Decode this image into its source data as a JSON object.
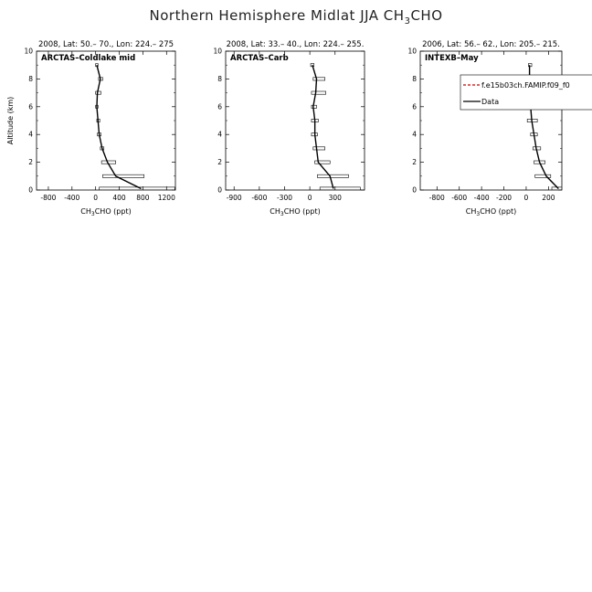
{
  "title_main": "Northern Hemisphere Midlat JJA CH",
  "title_sub": "3",
  "title_tail": "CHO",
  "colors": {
    "axis": "#000000",
    "data_line": "#000000",
    "model_line": "#cc0000"
  },
  "chart_data": [
    {
      "type": "line",
      "header": "2008, Lat:  50.–  70., Lon: 224.– 275",
      "campaign": "ARCTAS–Coldlake mid",
      "ylabel": "Altitude (km)",
      "xlabel": "CH3CHO (ppt)",
      "xlim": [
        -1000,
        1350
      ],
      "ylim": [
        0,
        10
      ],
      "xticks": [
        "-800",
        "-400",
        "0",
        "400",
        "800",
        "1200"
      ],
      "xtick_values": [
        -800,
        -400,
        0,
        400,
        800,
        1200
      ],
      "yticks": [
        "0",
        "2",
        "4",
        "6",
        "8",
        "10"
      ],
      "ytick_values": [
        0,
        2,
        4,
        6,
        8,
        10
      ],
      "series": [
        {
          "name": "Data",
          "altitude": [
            0.1,
            1,
            2,
            3,
            4,
            5,
            6,
            7,
            8,
            9
          ],
          "value": [
            770,
            340,
            200,
            110,
            60,
            40,
            20,
            30,
            80,
            20
          ],
          "xmin": [
            60,
            120,
            100,
            80,
            30,
            20,
            0,
            0,
            50,
            0
          ],
          "xmax": [
            1340,
            820,
            340,
            140,
            90,
            70,
            40,
            90,
            120,
            40
          ]
        }
      ],
      "legend": null
    },
    {
      "type": "line",
      "header": "2008, Lat:  33.–  40., Lon: 224.– 255.",
      "campaign": "ARCTAS–Carb",
      "ylabel": "",
      "xlabel": "CH3CHO (ppt)",
      "xlim": [
        -1000,
        650
      ],
      "ylim": [
        0,
        10
      ],
      "xticks": [
        "-900",
        "-600",
        "-300",
        "0",
        "300"
      ],
      "xtick_values": [
        -900,
        -600,
        -300,
        0,
        300
      ],
      "yticks": [
        "0",
        "2",
        "4",
        "6",
        "8",
        "10"
      ],
      "ytick_values": [
        0,
        2,
        4,
        6,
        8,
        10
      ],
      "series": [
        {
          "name": "Data",
          "altitude": [
            0.1,
            1,
            2,
            3,
            4,
            5,
            6,
            7,
            8,
            9
          ],
          "value": [
            280,
            240,
            100,
            80,
            60,
            60,
            40,
            70,
            80,
            30
          ],
          "xmin": [
            120,
            90,
            60,
            40,
            20,
            20,
            20,
            20,
            40,
            10
          ],
          "xmax": [
            600,
            460,
            240,
            180,
            90,
            100,
            80,
            190,
            180,
            50
          ]
        }
      ],
      "legend": null
    },
    {
      "type": "line",
      "header": "2006, Lat: 56.– 62., Lon: 205.– 215.",
      "campaign": "INTEXB–May",
      "ylabel": "",
      "xlabel": "CH3CHO (ppt)",
      "xlim": [
        -950,
        320
      ],
      "ylim": [
        0,
        10
      ],
      "xticks": [
        "-800",
        "-600",
        "-400",
        "-200",
        "0",
        "200"
      ],
      "xtick_values": [
        -800,
        -600,
        -400,
        -200,
        0,
        200
      ],
      "yticks": [
        "0",
        "2",
        "4",
        "6",
        "8",
        "10"
      ],
      "ytick_values": [
        0,
        2,
        4,
        6,
        8,
        10
      ],
      "series": [
        {
          "name": "Data",
          "altitude": [
            0.1,
            1,
            2,
            3,
            4,
            5,
            6,
            7,
            8,
            9
          ],
          "value": [
            290,
            180,
            120,
            90,
            70,
            50,
            40,
            20,
            30,
            30
          ],
          "xmin": [
            230,
            80,
            70,
            60,
            40,
            10,
            10,
            10,
            20,
            20
          ],
          "xmax": [
            340,
            220,
            170,
            130,
            100,
            100,
            80,
            50,
            50,
            50
          ]
        }
      ],
      "legend": {
        "entries": [
          {
            "label": "f.e15b03ch.FAMIP.f09_f0",
            "style": "dashed",
            "color": "#cc0000"
          },
          {
            "label": "Data",
            "style": "solid",
            "color": "#000000"
          }
        ]
      }
    }
  ]
}
